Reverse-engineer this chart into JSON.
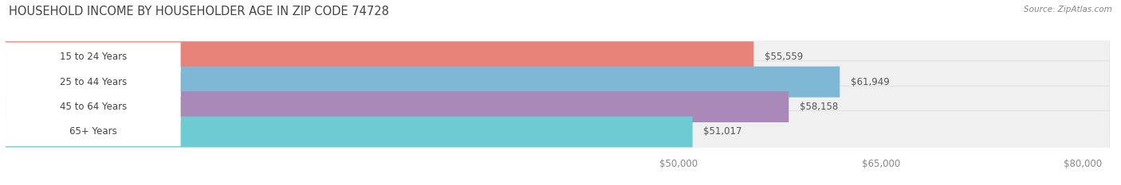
{
  "title": "HOUSEHOLD INCOME BY HOUSEHOLDER AGE IN ZIP CODE 74728",
  "source": "Source: ZipAtlas.com",
  "categories": [
    "15 to 24 Years",
    "25 to 44 Years",
    "45 to 64 Years",
    "65+ Years"
  ],
  "values": [
    55559,
    61949,
    58158,
    51017
  ],
  "bar_colors": [
    "#e8837a",
    "#7eb8d4",
    "#a889b8",
    "#6dcbd4"
  ],
  "bar_labels": [
    "$55,559",
    "$61,949",
    "$58,158",
    "$51,017"
  ],
  "xlim": [
    0,
    82000
  ],
  "xticks": [
    50000,
    65000,
    80000
  ],
  "xtick_labels": [
    "$50,000",
    "$65,000",
    "$80,000"
  ],
  "bar_height": 0.62,
  "row_bg_color": "#eeeeee",
  "row_border_color": "#dddddd",
  "label_bg_color": "#ffffff",
  "title_fontsize": 10.5,
  "label_fontsize": 8.5,
  "tick_fontsize": 8.5,
  "source_fontsize": 7.5
}
